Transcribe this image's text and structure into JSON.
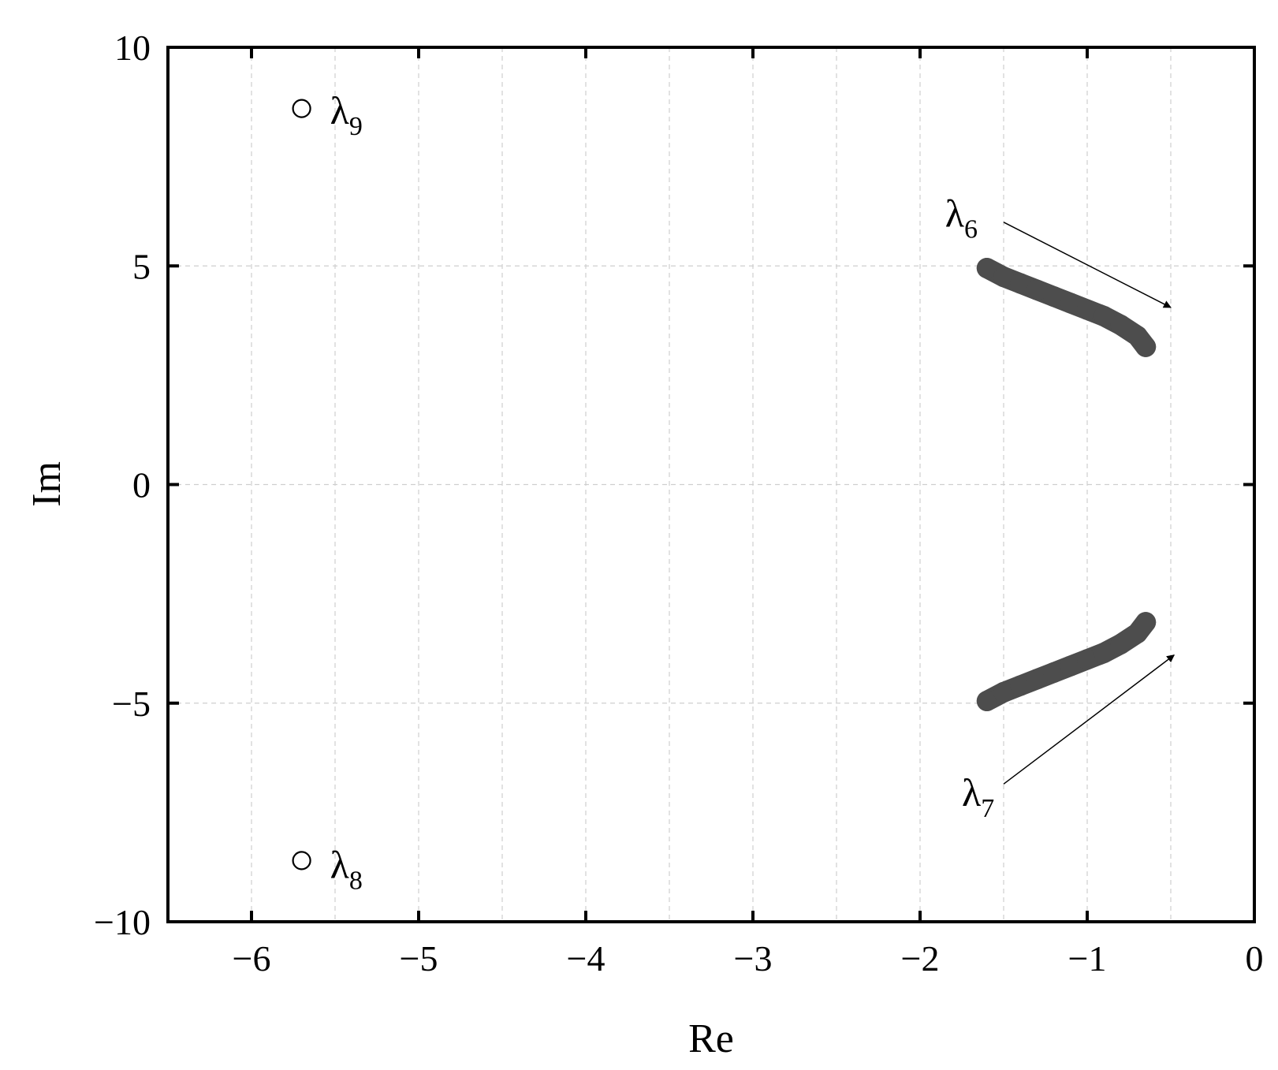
{
  "chart_data": {
    "type": "scatter",
    "title": "",
    "xlabel": "Re",
    "ylabel": "Im",
    "xlim": [
      -6.5,
      0
    ],
    "ylim": [
      -10,
      10
    ],
    "x_ticks": [
      -6,
      -5,
      -4,
      -3,
      -2,
      -1,
      0
    ],
    "x_tick_labels": [
      "−6",
      "−5",
      "−4",
      "−3",
      "−2",
      "−1",
      "0"
    ],
    "y_ticks": [
      -10,
      -5,
      0,
      5,
      10
    ],
    "y_tick_labels": [
      "−10",
      "−5",
      "0",
      "5",
      "10"
    ],
    "grid": true,
    "colors": {
      "trajectory": "#4d4d4d",
      "marker": "#000000",
      "grid": "#cfcfcf"
    },
    "series": [
      {
        "marker": "filled-circle",
        "x": [
          -1.6,
          -1.5,
          -1.4,
          -1.3,
          -1.2,
          -1.1,
          -1.0,
          -0.9,
          -0.8,
          -0.7,
          -0.65
        ],
        "y": [
          4.95,
          4.75,
          4.6,
          4.45,
          4.3,
          4.15,
          4.0,
          3.85,
          3.65,
          3.4,
          3.15
        ]
      },
      {
        "marker": "filled-circle",
        "x": [
          -1.6,
          -1.5,
          -1.4,
          -1.3,
          -1.2,
          -1.1,
          -1.0,
          -0.9,
          -0.8,
          -0.7,
          -0.65
        ],
        "y": [
          -4.95,
          -4.75,
          -4.6,
          -4.45,
          -4.3,
          -4.15,
          -4.0,
          -3.85,
          -3.65,
          -3.4,
          -3.15
        ]
      },
      {
        "marker": "open-circle",
        "x": [
          -5.7
        ],
        "y": [
          8.6
        ]
      },
      {
        "marker": "open-circle",
        "x": [
          -5.7
        ],
        "y": [
          -8.6
        ]
      }
    ],
    "annotations": [
      {
        "base": "λ",
        "sub": "9",
        "x": -5.53,
        "y": 8.25
      },
      {
        "base": "λ",
        "sub": "8",
        "x": -5.53,
        "y": -9.0
      },
      {
        "base": "λ",
        "sub": "6",
        "x": -1.85,
        "y": 5.9,
        "arrow": {
          "from": [
            -1.5,
            6.0
          ],
          "to": [
            -0.5,
            4.05
          ]
        }
      },
      {
        "base": "λ",
        "sub": "7",
        "x": -1.75,
        "y": -7.35,
        "arrow": {
          "from": [
            -1.5,
            -6.85
          ],
          "to": [
            -0.48,
            -3.9
          ]
        }
      }
    ]
  }
}
